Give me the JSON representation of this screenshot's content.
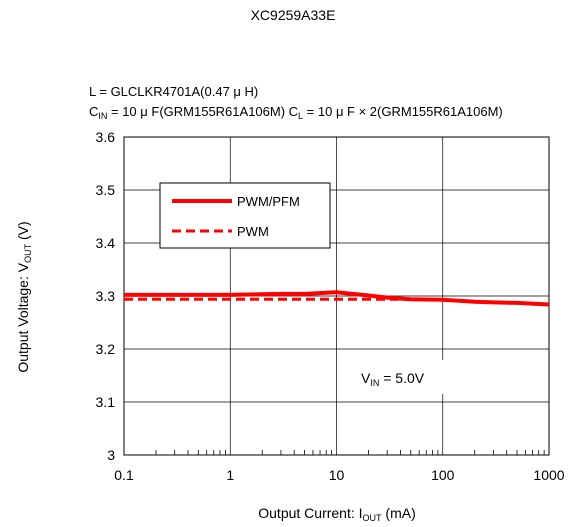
{
  "chart_data": {
    "type": "line",
    "title": "XC9259A33E",
    "conditions": {
      "line1": "L = GLCLKR4701A(0.47 μ H)",
      "line2_prefix": "C",
      "line2_sub1": "IN",
      "line2_mid": " = 10 μ F(GRM155R61A106M) C",
      "line2_sub2": "L",
      "line2_suffix": " = 10 μ F × 2(GRM155R61A106M)"
    },
    "annotation": {
      "prefix": "V",
      "sub": "IN",
      "suffix": " = 5.0V"
    },
    "xlabel": {
      "prefix": "Output Current: I",
      "sub": "OUT",
      "suffix": " (mA)"
    },
    "ylabel": {
      "prefix": "Output Voltage: V",
      "sub": "OUT",
      "suffix": " (V)"
    },
    "x_scale": "log",
    "xlim": [
      0.1,
      1000
    ],
    "ylim": [
      3.0,
      3.6
    ],
    "x_ticks": [
      0.1,
      1,
      10,
      100,
      1000
    ],
    "x_tick_labels": [
      "0.1",
      "1",
      "10",
      "100",
      "1000"
    ],
    "y_ticks": [
      3.0,
      3.1,
      3.2,
      3.3,
      3.4,
      3.5,
      3.6
    ],
    "y_tick_labels": [
      "3",
      "3.1",
      "3.2",
      "3.3",
      "3.4",
      "3.5",
      "3.6"
    ],
    "grid": true,
    "legend_position": "upper-left",
    "series": [
      {
        "name": "PWM/PFM",
        "style": "solid",
        "color": "#ff0000",
        "x": [
          0.1,
          0.3,
          1,
          3,
          5,
          10,
          20,
          30,
          50,
          100,
          200,
          300,
          500,
          1000
        ],
        "y": [
          3.302,
          3.302,
          3.302,
          3.304,
          3.304,
          3.307,
          3.301,
          3.297,
          3.294,
          3.293,
          3.289,
          3.288,
          3.287,
          3.284
        ]
      },
      {
        "name": "PWM",
        "style": "dashed",
        "color": "#ff0000",
        "x": [
          0.1,
          1,
          10,
          30,
          50
        ],
        "y": [
          3.294,
          3.294,
          3.294,
          3.294,
          3.294
        ]
      }
    ]
  }
}
